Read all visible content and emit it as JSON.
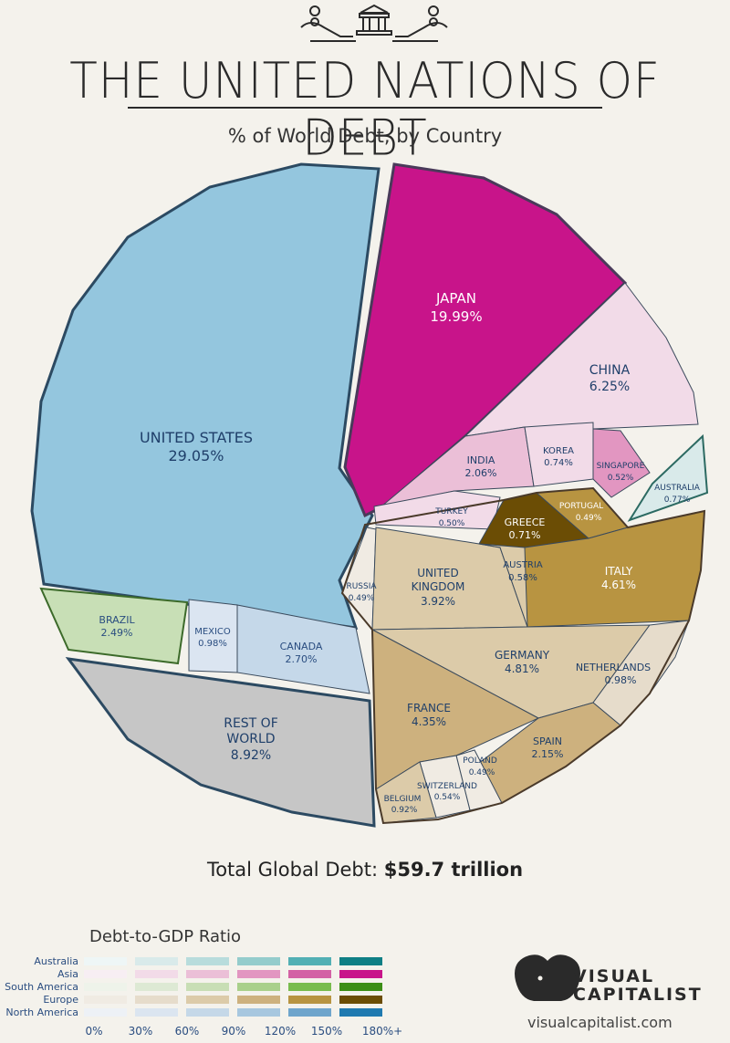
{
  "header": {
    "title": "THE UNITED NATIONS OF DEBT",
    "subtitle": "% of World Debt, by Country"
  },
  "chart_data": {
    "type": "pie",
    "title": "THE UNITED NATIONS OF DEBT",
    "subtitle": "% of World Debt, by Country",
    "unit": "%",
    "regions": [
      {
        "name": "North America",
        "countries": [
          {
            "country": "UNITED STATES",
            "share": 29.05,
            "label": "29.05%"
          },
          {
            "country": "CANADA",
            "share": 2.7,
            "label": "2.70%"
          },
          {
            "country": "MEXICO",
            "share": 0.98,
            "label": "0.98%"
          }
        ]
      },
      {
        "name": "South America",
        "countries": [
          {
            "country": "BRAZIL",
            "share": 2.49,
            "label": "2.49%"
          }
        ]
      },
      {
        "name": "Rest of World",
        "countries": [
          {
            "country": "REST OF WORLD",
            "share": 8.92,
            "label": "8.92%"
          }
        ]
      },
      {
        "name": "Europe",
        "countries": [
          {
            "country": "FRANCE",
            "share": 4.35,
            "label": "4.35%"
          },
          {
            "country": "GERMANY",
            "share": 4.81,
            "label": "4.81%"
          },
          {
            "country": "ITALY",
            "share": 4.61,
            "label": "4.61%"
          },
          {
            "country": "UNITED KINGDOM",
            "share": 3.92,
            "label": "3.92%"
          },
          {
            "country": "SPAIN",
            "share": 2.15,
            "label": "2.15%"
          },
          {
            "country": "NETHERLANDS",
            "share": 0.98,
            "label": "0.98%"
          },
          {
            "country": "BELGIUM",
            "share": 0.92,
            "label": "0.92%"
          },
          {
            "country": "GREECE",
            "share": 0.71,
            "label": "0.71%"
          },
          {
            "country": "AUSTRIA",
            "share": 0.58,
            "label": "0.58%"
          },
          {
            "country": "SWITZERLAND",
            "share": 0.54,
            "label": "0.54%"
          },
          {
            "country": "RUSSIA",
            "share": 0.49,
            "label": "0.49%"
          },
          {
            "country": "PORTUGAL",
            "share": 0.49,
            "label": "0.49%"
          },
          {
            "country": "POLAND",
            "share": 0.49,
            "label": "0.49%"
          }
        ]
      },
      {
        "name": "Asia",
        "countries": [
          {
            "country": "JAPAN",
            "share": 19.99,
            "label": "19.99%"
          },
          {
            "country": "CHINA",
            "share": 6.25,
            "label": "6.25%"
          },
          {
            "country": "INDIA",
            "share": 2.06,
            "label": "2.06%"
          },
          {
            "country": "KOREA",
            "share": 0.74,
            "label": "0.74%"
          },
          {
            "country": "SINGAPORE",
            "share": 0.52,
            "label": "0.52%"
          },
          {
            "country": "TURKEY",
            "share": 0.5,
            "label": "0.50%"
          }
        ]
      },
      {
        "name": "Australia",
        "countries": [
          {
            "country": "AUSTRALIA",
            "share": 0.77,
            "label": "0.77%"
          }
        ]
      }
    ],
    "total_label": "Total Global Debt: ",
    "total_value": "$59.7 trillion",
    "color_scale": {
      "title": "Debt-to-GDP Ratio",
      "ticks": [
        "0%",
        "30%",
        "60%",
        "90%",
        "120%",
        "150%",
        "180%+"
      ],
      "rows": [
        {
          "name": "Australia",
          "colors": [
            "#eef6f6",
            "#d9eaea",
            "#b8dcdc",
            "#94cccc",
            "#52b0b4",
            "#0f7f85"
          ]
        },
        {
          "name": "Asia",
          "colors": [
            "#f7eef3",
            "#f2dbe8",
            "#ebbfd7",
            "#e296c1",
            "#d361a5",
            "#c8148a"
          ]
        },
        {
          "name": "South America",
          "colors": [
            "#eef3ea",
            "#dde9d4",
            "#c8deb5",
            "#a9d08b",
            "#78bc4e",
            "#3c8e16"
          ]
        },
        {
          "name": "Europe",
          "colors": [
            "#f0ebe3",
            "#e6dccb",
            "#dccba9",
            "#cdb17e",
            "#b89441",
            "#6b4d05"
          ]
        },
        {
          "name": "North America",
          "colors": [
            "#edf1f6",
            "#dbe5f0",
            "#c5d8e8",
            "#a7c7df",
            "#6fa5cc",
            "#1f7ab0"
          ]
        }
      ]
    }
  },
  "brand": {
    "line1": "VISUAL",
    "line2": "CAPITALIST",
    "url": "visualcapitalist.com",
    "logo_icon": "elephant-logo-icon",
    "header_icon": "bank-hands-icon"
  }
}
